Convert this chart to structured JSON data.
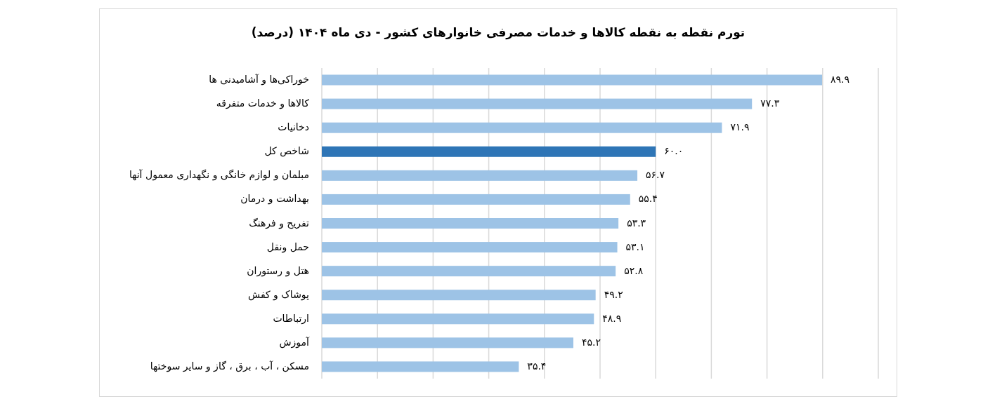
{
  "chart_data": {
    "type": "bar",
    "orientation": "horizontal",
    "title": "تورم نقطه به نقطه کالاها و خدمات مصرفی خانوارهای کشور - دی ماه ۱۴۰۴ (درصد)",
    "categories": [
      "خوراکی‌ها و آشامیدنی ها",
      "کالاها و خدمات متفرقه",
      "دخانیات",
      "شاخص کل",
      "مبلمان و لوازم خانگی و نگهداری معمول آنها",
      "بهداشت و درمان",
      "تفریح و فرهنگ",
      "حمل ونقل",
      "هتل و رستوران",
      "پوشاک و کفش",
      "ارتباطات",
      "آموزش",
      "مسکن ، آب ، برق ، گاز و سایر سوختها"
    ],
    "values": [
      89.9,
      77.3,
      71.9,
      60.0,
      56.7,
      55.4,
      53.3,
      53.1,
      52.8,
      49.2,
      48.9,
      45.2,
      35.4
    ],
    "value_labels": [
      "۸۹.۹",
      "۷۷.۳",
      "۷۱.۹",
      "۶۰.۰",
      "۵۶.۷",
      "۵۵.۴",
      "۵۳.۳",
      "۵۳.۱",
      "۵۲.۸",
      "۴۹.۲",
      "۴۸.۹",
      "۴۵.۲",
      "۳۵.۴"
    ],
    "colors": [
      "#9dc3e6",
      "#9dc3e6",
      "#9dc3e6",
      "#2e75b6",
      "#9dc3e6",
      "#9dc3e6",
      "#9dc3e6",
      "#9dc3e6",
      "#9dc3e6",
      "#9dc3e6",
      "#9dc3e6",
      "#9dc3e6",
      "#9dc3e6"
    ],
    "xlim": [
      0,
      100
    ],
    "xticks": [
      {
        "value": 0,
        "label": null
      },
      {
        "value": 10,
        "label": null
      },
      {
        "value": 20,
        "label": null
      },
      {
        "value": 30,
        "label": null
      },
      {
        "value": 40,
        "label": null
      },
      {
        "value": 50,
        "label": null
      },
      {
        "value": 60,
        "label": null
      },
      {
        "value": 70,
        "label": null
      },
      {
        "value": 80,
        "label": null
      },
      {
        "value": 90,
        "label": null
      },
      {
        "value": 100,
        "label": null
      }
    ],
    "grid": "x"
  }
}
